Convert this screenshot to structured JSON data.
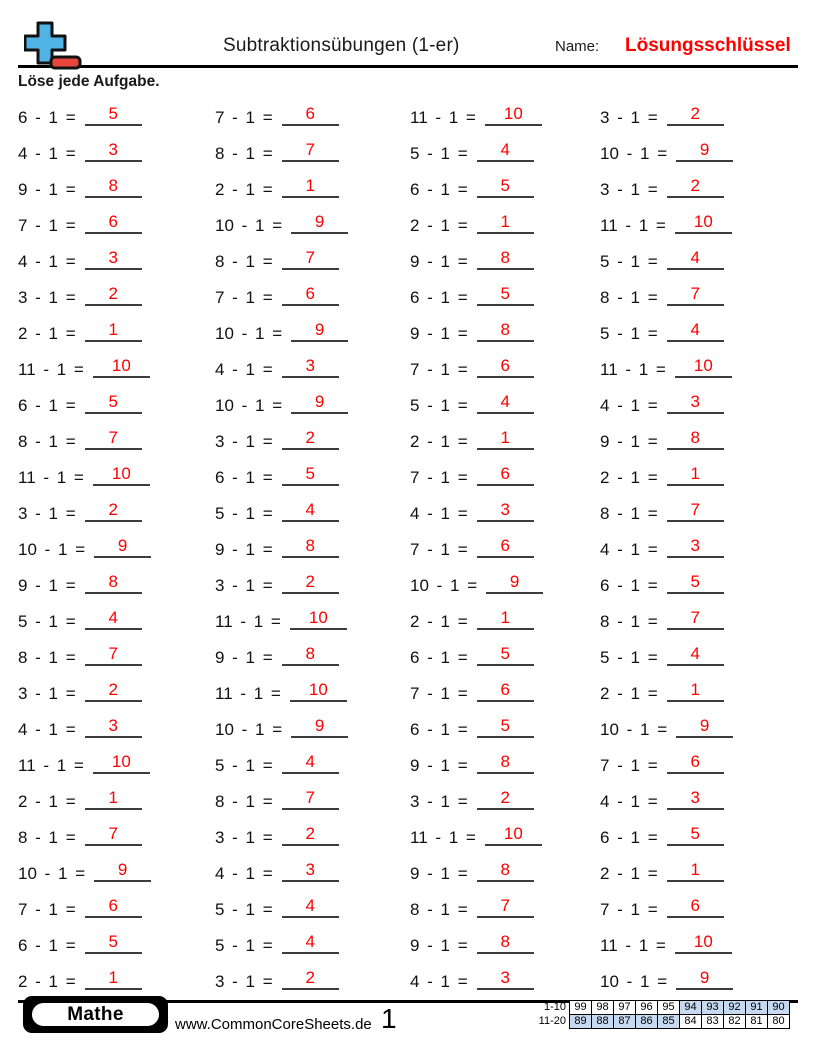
{
  "colors": {
    "answer_red": "#fe0000",
    "logo_blue": "#4fb3e5",
    "logo_red": "#e8453c",
    "table_highlight": "#c6d9f1"
  },
  "header": {
    "title": "Subtraktionsübungen (1-er)",
    "name_label": "Name:",
    "answer_key_label": "Lösungsschlüssel",
    "instruction": "Löse jede Aufgabe."
  },
  "problems": {
    "operator": "-",
    "subtrahend": "1",
    "equals_sign": "=",
    "columns": [
      [
        {
          "m": "6",
          "a": "5"
        },
        {
          "m": "4",
          "a": "3"
        },
        {
          "m": "9",
          "a": "8"
        },
        {
          "m": "7",
          "a": "6"
        },
        {
          "m": "4",
          "a": "3"
        },
        {
          "m": "3",
          "a": "2"
        },
        {
          "m": "2",
          "a": "1"
        },
        {
          "m": "11",
          "a": "10"
        },
        {
          "m": "6",
          "a": "5"
        },
        {
          "m": "8",
          "a": "7"
        },
        {
          "m": "11",
          "a": "10"
        },
        {
          "m": "3",
          "a": "2"
        },
        {
          "m": "10",
          "a": "9"
        },
        {
          "m": "9",
          "a": "8"
        },
        {
          "m": "5",
          "a": "4"
        },
        {
          "m": "8",
          "a": "7"
        },
        {
          "m": "3",
          "a": "2"
        },
        {
          "m": "4",
          "a": "3"
        },
        {
          "m": "11",
          "a": "10"
        },
        {
          "m": "2",
          "a": "1"
        },
        {
          "m": "8",
          "a": "7"
        },
        {
          "m": "10",
          "a": "9"
        },
        {
          "m": "7",
          "a": "6"
        },
        {
          "m": "6",
          "a": "5"
        },
        {
          "m": "2",
          "a": "1"
        }
      ],
      [
        {
          "m": "7",
          "a": "6"
        },
        {
          "m": "8",
          "a": "7"
        },
        {
          "m": "2",
          "a": "1"
        },
        {
          "m": "10",
          "a": "9"
        },
        {
          "m": "8",
          "a": "7"
        },
        {
          "m": "7",
          "a": "6"
        },
        {
          "m": "10",
          "a": "9"
        },
        {
          "m": "4",
          "a": "3"
        },
        {
          "m": "10",
          "a": "9"
        },
        {
          "m": "3",
          "a": "2"
        },
        {
          "m": "6",
          "a": "5"
        },
        {
          "m": "5",
          "a": "4"
        },
        {
          "m": "9",
          "a": "8"
        },
        {
          "m": "3",
          "a": "2"
        },
        {
          "m": "11",
          "a": "10"
        },
        {
          "m": "9",
          "a": "8"
        },
        {
          "m": "11",
          "a": "10"
        },
        {
          "m": "10",
          "a": "9"
        },
        {
          "m": "5",
          "a": "4"
        },
        {
          "m": "8",
          "a": "7"
        },
        {
          "m": "3",
          "a": "2"
        },
        {
          "m": "4",
          "a": "3"
        },
        {
          "m": "5",
          "a": "4"
        },
        {
          "m": "5",
          "a": "4"
        },
        {
          "m": "3",
          "a": "2"
        }
      ],
      [
        {
          "m": "11",
          "a": "10"
        },
        {
          "m": "5",
          "a": "4"
        },
        {
          "m": "6",
          "a": "5"
        },
        {
          "m": "2",
          "a": "1"
        },
        {
          "m": "9",
          "a": "8"
        },
        {
          "m": "6",
          "a": "5"
        },
        {
          "m": "9",
          "a": "8"
        },
        {
          "m": "7",
          "a": "6"
        },
        {
          "m": "5",
          "a": "4"
        },
        {
          "m": "2",
          "a": "1"
        },
        {
          "m": "7",
          "a": "6"
        },
        {
          "m": "4",
          "a": "3"
        },
        {
          "m": "7",
          "a": "6"
        },
        {
          "m": "10",
          "a": "9"
        },
        {
          "m": "2",
          "a": "1"
        },
        {
          "m": "6",
          "a": "5"
        },
        {
          "m": "7",
          "a": "6"
        },
        {
          "m": "6",
          "a": "5"
        },
        {
          "m": "9",
          "a": "8"
        },
        {
          "m": "3",
          "a": "2"
        },
        {
          "m": "11",
          "a": "10"
        },
        {
          "m": "9",
          "a": "8"
        },
        {
          "m": "8",
          "a": "7"
        },
        {
          "m": "9",
          "a": "8"
        },
        {
          "m": "4",
          "a": "3"
        }
      ],
      [
        {
          "m": "3",
          "a": "2"
        },
        {
          "m": "10",
          "a": "9"
        },
        {
          "m": "3",
          "a": "2"
        },
        {
          "m": "11",
          "a": "10"
        },
        {
          "m": "5",
          "a": "4"
        },
        {
          "m": "8",
          "a": "7"
        },
        {
          "m": "5",
          "a": "4"
        },
        {
          "m": "11",
          "a": "10"
        },
        {
          "m": "4",
          "a": "3"
        },
        {
          "m": "9",
          "a": "8"
        },
        {
          "m": "2",
          "a": "1"
        },
        {
          "m": "8",
          "a": "7"
        },
        {
          "m": "4",
          "a": "3"
        },
        {
          "m": "6",
          "a": "5"
        },
        {
          "m": "8",
          "a": "7"
        },
        {
          "m": "5",
          "a": "4"
        },
        {
          "m": "2",
          "a": "1"
        },
        {
          "m": "10",
          "a": "9"
        },
        {
          "m": "7",
          "a": "6"
        },
        {
          "m": "4",
          "a": "3"
        },
        {
          "m": "6",
          "a": "5"
        },
        {
          "m": "2",
          "a": "1"
        },
        {
          "m": "7",
          "a": "6"
        },
        {
          "m": "11",
          "a": "10"
        },
        {
          "m": "10",
          "a": "9"
        }
      ]
    ]
  },
  "footer": {
    "brand": "Mathe",
    "website": "www.CommonCoreSheets.de",
    "page_number": "1",
    "score_table": {
      "rows": [
        {
          "label": "1-10",
          "cells": [
            "99",
            "98",
            "97",
            "96",
            "95",
            "94",
            "93",
            "92",
            "91",
            "90"
          ],
          "highlighted": [
            5,
            6,
            7,
            8,
            9
          ]
        },
        {
          "label": "11-20",
          "cells": [
            "89",
            "88",
            "87",
            "86",
            "85",
            "84",
            "83",
            "82",
            "81",
            "80"
          ],
          "highlighted": [
            0,
            1,
            2,
            3,
            4
          ]
        }
      ]
    }
  }
}
